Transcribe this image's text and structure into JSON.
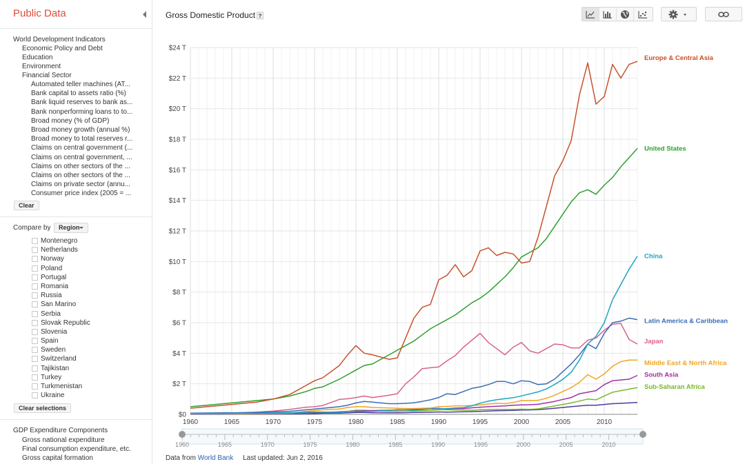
{
  "app": {
    "title": "Public Data"
  },
  "sidebar": {
    "indicators": {
      "root": "World Development Indicators",
      "categories": [
        "Economic Policy and Debt",
        "Education",
        "Environment"
      ],
      "open_category": "Financial Sector",
      "items": [
        "Automated teller machines (AT...",
        "Bank capital to assets ratio (%)",
        "Bank liquid reserves to bank as...",
        "Bank nonperforming loans to to...",
        "Broad money (% of GDP)",
        "Broad money growth (annual %)",
        "Broad money to total reserves r...",
        "Claims on central government (...",
        "Claims on central government, ...",
        "Claims on other sectors of the ...",
        "Claims on other sectors of the ...",
        "Claims on private sector (annu...",
        "Consumer price index (2005 = ..."
      ],
      "clear_label": "Clear"
    },
    "compare": {
      "label": "Compare by",
      "select_value": "Region",
      "countries": [
        "Montenegro",
        "Netherlands",
        "Norway",
        "Poland",
        "Portugal",
        "Romania",
        "Russia",
        "San Marino",
        "Serbia",
        "Slovak Republic",
        "Slovenia",
        "Spain",
        "Sweden",
        "Switzerland",
        "Tajikistan",
        "Turkey",
        "Turkmenistan",
        "Ukraine"
      ],
      "clear_label": "Clear selections"
    },
    "gdp": {
      "root": "GDP Expenditure Components",
      "items": [
        "Gross national expenditure",
        "Final consumption expenditure, etc.",
        "Gross capital formation"
      ]
    }
  },
  "header": {
    "title": "Gross Domestic Product",
    "help": "?",
    "tools": [
      "line-chart-icon",
      "bar-chart-icon",
      "globe-icon",
      "scatter-chart-icon"
    ]
  },
  "footer": {
    "prefix": "Data from",
    "source": "World Bank",
    "updated": "Last updated: Jun 2, 2016"
  },
  "colors": {
    "europe": "#c8502a",
    "us": "#2e9e2e",
    "china": "#1aa3c2",
    "latam": "#3a6cb5",
    "japan": "#d9608f",
    "mena": "#f0a51f",
    "south_asia": "#a12fa6",
    "ssa": "#79b82a",
    "other": "#4b3a9e"
  },
  "chart_data": {
    "type": "line",
    "xlim": [
      1960,
      2014
    ],
    "ylim": [
      0,
      24
    ],
    "yticks": [
      "$0",
      "$2 T",
      "$4 T",
      "$6 T",
      "$8 T",
      "$10 T",
      "$12 T",
      "$14 T",
      "$16 T",
      "$18 T",
      "$20 T",
      "$22 T",
      "$24 T"
    ],
    "xticks": [
      "1960",
      "1965",
      "1970",
      "1975",
      "1980",
      "1985",
      "1990",
      "1995",
      "2000",
      "2005",
      "2010"
    ],
    "grid": true,
    "x": [
      1960,
      1962,
      1964,
      1966,
      1968,
      1970,
      1972,
      1974,
      1975,
      1976,
      1978,
      1979,
      1980,
      1981,
      1982,
      1984,
      1985,
      1986,
      1987,
      1988,
      1989,
      1990,
      1991,
      1992,
      1993,
      1994,
      1995,
      1996,
      1997,
      1998,
      1999,
      2000,
      2001,
      2002,
      2003,
      2004,
      2005,
      2006,
      2007,
      2008,
      2009,
      2010,
      2011,
      2012,
      2013,
      2014
    ],
    "series": [
      {
        "name": "Europe & Central Asia",
        "color_key": "europe",
        "values": [
          0.4,
          0.5,
          0.6,
          0.7,
          0.8,
          1.0,
          1.3,
          1.9,
          2.2,
          2.4,
          3.2,
          3.9,
          4.5,
          4.0,
          3.9,
          3.6,
          3.7,
          5.0,
          6.3,
          7.0,
          7.2,
          8.8,
          9.1,
          9.8,
          9.0,
          9.4,
          10.7,
          10.9,
          10.4,
          10.6,
          10.5,
          9.9,
          10.0,
          11.6,
          13.6,
          15.6,
          16.6,
          17.9,
          20.9,
          23.0,
          20.3,
          20.8,
          22.9,
          22.0,
          22.9,
          23.1
        ]
      },
      {
        "name": "United States",
        "color_key": "us",
        "values": [
          0.5,
          0.6,
          0.7,
          0.8,
          0.9,
          1.0,
          1.2,
          1.5,
          1.7,
          1.8,
          2.3,
          2.6,
          2.9,
          3.2,
          3.3,
          3.9,
          4.2,
          4.5,
          4.8,
          5.2,
          5.6,
          5.9,
          6.2,
          6.5,
          6.9,
          7.3,
          7.6,
          8.0,
          8.5,
          9.0,
          9.6,
          10.3,
          10.6,
          10.9,
          11.5,
          12.3,
          13.1,
          13.9,
          14.5,
          14.7,
          14.4,
          15.0,
          15.5,
          16.2,
          16.8,
          17.4
        ]
      },
      {
        "name": "China",
        "color_key": "china",
        "values": [
          0.06,
          0.05,
          0.06,
          0.07,
          0.07,
          0.09,
          0.11,
          0.14,
          0.16,
          0.15,
          0.15,
          0.18,
          0.19,
          0.2,
          0.2,
          0.26,
          0.31,
          0.3,
          0.27,
          0.31,
          0.35,
          0.36,
          0.38,
          0.42,
          0.44,
          0.56,
          0.73,
          0.86,
          0.96,
          1.03,
          1.09,
          1.21,
          1.34,
          1.47,
          1.66,
          1.96,
          2.29,
          2.75,
          3.55,
          4.6,
          5.1,
          6.0,
          7.5,
          8.5,
          9.5,
          10.35
        ]
      },
      {
        "name": "Latin America & Caribbean",
        "color_key": "latam",
        "values": [
          0.08,
          0.09,
          0.1,
          0.11,
          0.13,
          0.16,
          0.2,
          0.3,
          0.35,
          0.4,
          0.5,
          0.6,
          0.75,
          0.85,
          0.8,
          0.7,
          0.7,
          0.72,
          0.76,
          0.85,
          0.95,
          1.1,
          1.35,
          1.3,
          1.5,
          1.7,
          1.8,
          1.95,
          2.15,
          2.15,
          2.0,
          2.2,
          2.15,
          1.95,
          2.0,
          2.3,
          2.8,
          3.3,
          3.9,
          4.6,
          4.3,
          5.3,
          6.0,
          6.1,
          6.3,
          6.2
        ]
      },
      {
        "name": "Japan",
        "color_key": "japan",
        "values": [
          0.04,
          0.06,
          0.08,
          0.11,
          0.15,
          0.21,
          0.32,
          0.47,
          0.5,
          0.58,
          0.98,
          1.02,
          1.1,
          1.2,
          1.1,
          1.25,
          1.35,
          2.0,
          2.45,
          2.99,
          3.05,
          3.1,
          3.5,
          3.85,
          4.4,
          4.85,
          5.3,
          4.7,
          4.3,
          3.9,
          4.4,
          4.7,
          4.15,
          4.0,
          4.3,
          4.6,
          4.55,
          4.35,
          4.35,
          4.85,
          5.0,
          5.5,
          5.9,
          5.95,
          4.9,
          4.6
        ]
      },
      {
        "name": "Middle East & North Africa",
        "color_key": "mena",
        "values": [
          0.03,
          0.03,
          0.04,
          0.04,
          0.05,
          0.06,
          0.08,
          0.2,
          0.25,
          0.3,
          0.35,
          0.45,
          0.5,
          0.5,
          0.45,
          0.42,
          0.4,
          0.38,
          0.38,
          0.4,
          0.42,
          0.5,
          0.52,
          0.55,
          0.56,
          0.58,
          0.62,
          0.68,
          0.72,
          0.7,
          0.78,
          0.9,
          0.9,
          0.92,
          1.05,
          1.25,
          1.5,
          1.75,
          2.1,
          2.6,
          2.3,
          2.65,
          3.15,
          3.45,
          3.55,
          3.55
        ]
      },
      {
        "name": "South Asia",
        "color_key": "south_asia",
        "values": [
          0.05,
          0.05,
          0.06,
          0.07,
          0.07,
          0.08,
          0.09,
          0.12,
          0.13,
          0.13,
          0.16,
          0.19,
          0.22,
          0.24,
          0.25,
          0.27,
          0.28,
          0.3,
          0.33,
          0.36,
          0.37,
          0.39,
          0.35,
          0.37,
          0.38,
          0.43,
          0.47,
          0.5,
          0.53,
          0.55,
          0.6,
          0.62,
          0.63,
          0.66,
          0.75,
          0.85,
          0.98,
          1.1,
          1.35,
          1.45,
          1.55,
          1.95,
          2.2,
          2.25,
          2.3,
          2.55
        ]
      },
      {
        "name": "Sub-Saharan Africa",
        "color_key": "ssa",
        "values": [
          0.03,
          0.03,
          0.04,
          0.04,
          0.05,
          0.06,
          0.07,
          0.1,
          0.12,
          0.13,
          0.17,
          0.2,
          0.27,
          0.27,
          0.24,
          0.2,
          0.2,
          0.21,
          0.22,
          0.24,
          0.25,
          0.3,
          0.3,
          0.29,
          0.28,
          0.27,
          0.3,
          0.32,
          0.33,
          0.32,
          0.32,
          0.34,
          0.33,
          0.36,
          0.45,
          0.55,
          0.65,
          0.75,
          0.87,
          1.0,
          0.95,
          1.2,
          1.45,
          1.55,
          1.65,
          1.75
        ]
      },
      {
        "name": "",
        "color_key": "other",
        "values": [
          0.01,
          0.01,
          0.01,
          0.02,
          0.02,
          0.02,
          0.03,
          0.05,
          0.06,
          0.07,
          0.08,
          0.1,
          0.12,
          0.12,
          0.11,
          0.1,
          0.1,
          0.11,
          0.12,
          0.13,
          0.14,
          0.16,
          0.15,
          0.16,
          0.17,
          0.18,
          0.2,
          0.22,
          0.24,
          0.25,
          0.26,
          0.28,
          0.29,
          0.31,
          0.35,
          0.4,
          0.45,
          0.5,
          0.55,
          0.6,
          0.6,
          0.65,
          0.7,
          0.72,
          0.75,
          0.78
        ]
      }
    ]
  }
}
